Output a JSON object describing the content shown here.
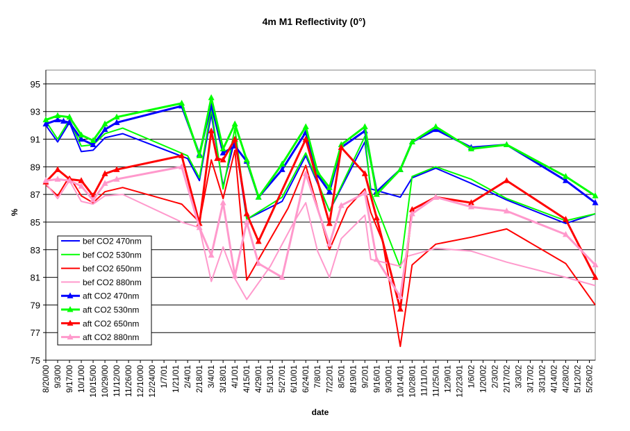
{
  "chart_data": {
    "type": "line",
    "title": "4m M1 Reflectivity  (0°)",
    "xlabel": "date",
    "ylabel": "%",
    "ylim": [
      75,
      96
    ],
    "y_ticks": [
      75,
      77,
      79,
      81,
      83,
      85,
      87,
      89,
      91,
      93,
      95
    ],
    "x_range": [
      "2000-08-20",
      "2002-06-02"
    ],
    "x_tick_labels": [
      "8/20/00",
      "9/3/00",
      "9/17/00",
      "10/1/00",
      "10/15/00",
      "10/29/00",
      "11/12/00",
      "11/26/00",
      "12/10/00",
      "12/24/00",
      "1/7/01",
      "1/21/01",
      "2/4/01",
      "2/18/01",
      "3/4/01",
      "3/18/01",
      "4/1/01",
      "4/15/01",
      "4/29/01",
      "5/13/01",
      "5/27/01",
      "6/10/01",
      "6/24/01",
      "7/8/01",
      "7/22/01",
      "8/5/01",
      "8/19/01",
      "9/2/01",
      "9/16/01",
      "9/30/01",
      "10/14/01",
      "10/28/01",
      "11/11/01",
      "11/25/01",
      "12/9/01",
      "12/23/01",
      "1/6/02",
      "1/20/02",
      "2/3/02",
      "2/17/02",
      "3/3/02",
      "3/17/02",
      "3/31/02",
      "4/14/02",
      "4/28/02",
      "5/12/02",
      "5/26/02"
    ],
    "x_tick_dates": [
      "2000-08-20",
      "2000-09-03",
      "2000-09-17",
      "2000-10-01",
      "2000-10-15",
      "2000-10-29",
      "2000-11-12",
      "2000-11-26",
      "2000-12-10",
      "2000-12-24",
      "2001-01-07",
      "2001-01-21",
      "2001-02-04",
      "2001-02-18",
      "2001-03-04",
      "2001-03-18",
      "2001-04-01",
      "2001-04-15",
      "2001-04-29",
      "2001-05-13",
      "2001-05-27",
      "2001-06-10",
      "2001-06-24",
      "2001-07-08",
      "2001-07-22",
      "2001-08-05",
      "2001-08-19",
      "2001-09-02",
      "2001-09-16",
      "2001-09-30",
      "2001-10-14",
      "2001-10-28",
      "2001-11-11",
      "2001-11-25",
      "2001-12-09",
      "2001-12-23",
      "2002-01-06",
      "2002-01-20",
      "2002-02-03",
      "2002-02-17",
      "2002-03-03",
      "2002-03-17",
      "2002-03-31",
      "2002-04-14",
      "2002-04-28",
      "2002-05-12",
      "2002-05-26"
    ],
    "grid": "horizontal",
    "legend_position": "left-bottom",
    "series": [
      {
        "name": "bef CO2 470nm",
        "color": "#0000ff",
        "marker": false,
        "width": 2,
        "points": [
          [
            "2000-08-20",
            92.0
          ],
          [
            "2000-09-03",
            90.8
          ],
          [
            "2000-09-17",
            92.2
          ],
          [
            "2000-10-01",
            90.1
          ],
          [
            "2000-10-15",
            90.2
          ],
          [
            "2000-10-29",
            91.1
          ],
          [
            "2000-11-19",
            91.4
          ],
          [
            "2001-02-04",
            89.6
          ],
          [
            "2001-02-18",
            88.0
          ],
          [
            "2001-03-04",
            92.8
          ],
          [
            "2001-03-18",
            87.6
          ],
          [
            "2001-04-01",
            91.0
          ],
          [
            "2001-04-15",
            85.2
          ],
          [
            "2001-05-27",
            86.5
          ],
          [
            "2001-06-24",
            89.8
          ],
          [
            "2001-07-22",
            85.8
          ],
          [
            "2001-09-02",
            90.8
          ],
          [
            "2001-09-09",
            87.4
          ],
          [
            "2001-10-14",
            86.8
          ],
          [
            "2001-10-28",
            88.2
          ],
          [
            "2001-11-25",
            88.9
          ],
          [
            "2002-01-06",
            87.8
          ],
          [
            "2002-02-17",
            86.6
          ],
          [
            "2002-04-28",
            84.9
          ],
          [
            "2002-06-02",
            85.6
          ]
        ]
      },
      {
        "name": "bef CO2 530nm",
        "color": "#00ff00",
        "marker": false,
        "width": 2,
        "points": [
          [
            "2000-08-20",
            92.3
          ],
          [
            "2000-09-03",
            91.0
          ],
          [
            "2000-09-17",
            92.4
          ],
          [
            "2000-10-01",
            90.5
          ],
          [
            "2000-10-15",
            90.6
          ],
          [
            "2000-10-29",
            91.4
          ],
          [
            "2000-11-19",
            91.8
          ],
          [
            "2001-02-04",
            89.8
          ],
          [
            "2001-02-18",
            88.2
          ],
          [
            "2001-03-04",
            93.2
          ],
          [
            "2001-03-18",
            87.4
          ],
          [
            "2001-04-01",
            91.8
          ],
          [
            "2001-04-15",
            85.2
          ],
          [
            "2001-05-27",
            86.8
          ],
          [
            "2001-06-24",
            90.0
          ],
          [
            "2001-07-22",
            85.8
          ],
          [
            "2001-09-02",
            91.2
          ],
          [
            "2001-09-09",
            87.2
          ],
          [
            "2001-10-14",
            81.7
          ],
          [
            "2001-10-28",
            88.3
          ],
          [
            "2001-11-25",
            89.0
          ],
          [
            "2002-01-06",
            88.1
          ],
          [
            "2002-02-17",
            86.7
          ],
          [
            "2002-04-28",
            85.1
          ],
          [
            "2002-06-02",
            85.6
          ]
        ]
      },
      {
        "name": "bef CO2 650nm",
        "color": "#ff0000",
        "marker": false,
        "width": 2,
        "points": [
          [
            "2000-08-20",
            87.7
          ],
          [
            "2000-09-03",
            86.9
          ],
          [
            "2000-09-17",
            88.3
          ],
          [
            "2000-10-01",
            86.9
          ],
          [
            "2000-10-15",
            86.4
          ],
          [
            "2000-10-29",
            87.2
          ],
          [
            "2000-11-19",
            87.5
          ],
          [
            "2001-01-28",
            86.3
          ],
          [
            "2001-02-18",
            85.0
          ],
          [
            "2001-03-04",
            89.5
          ],
          [
            "2001-03-18",
            86.7
          ],
          [
            "2001-04-01",
            90.2
          ],
          [
            "2001-04-15",
            80.8
          ],
          [
            "2001-06-03",
            86.0
          ],
          [
            "2001-06-24",
            89.1
          ],
          [
            "2001-07-22",
            83.0
          ],
          [
            "2001-08-12",
            86.0
          ],
          [
            "2001-09-02",
            87.4
          ],
          [
            "2001-09-09",
            85.7
          ],
          [
            "2001-09-23",
            83.6
          ],
          [
            "2001-10-14",
            76.0
          ],
          [
            "2001-10-28",
            81.9
          ],
          [
            "2001-11-25",
            83.4
          ],
          [
            "2002-01-06",
            83.9
          ],
          [
            "2002-02-17",
            84.5
          ],
          [
            "2002-04-28",
            82.0
          ],
          [
            "2002-06-02",
            79.0
          ]
        ]
      },
      {
        "name": "bef CO2 880nm",
        "color": "#ff99cc",
        "marker": false,
        "width": 2,
        "points": [
          [
            "2000-08-20",
            87.8
          ],
          [
            "2000-09-03",
            86.7
          ],
          [
            "2000-09-17",
            88.0
          ],
          [
            "2000-10-01",
            86.5
          ],
          [
            "2000-10-15",
            86.3
          ],
          [
            "2000-10-29",
            86.9
          ],
          [
            "2000-11-19",
            87.0
          ],
          [
            "2001-01-28",
            85.0
          ],
          [
            "2001-02-18",
            84.6
          ],
          [
            "2001-03-04",
            80.7
          ],
          [
            "2001-03-18",
            83.2
          ],
          [
            "2001-04-01",
            80.9
          ],
          [
            "2001-04-15",
            79.4
          ],
          [
            "2001-05-13",
            81.8
          ],
          [
            "2001-06-10",
            85.0
          ],
          [
            "2001-06-24",
            86.4
          ],
          [
            "2001-07-08",
            82.9
          ],
          [
            "2001-07-22",
            81.0
          ],
          [
            "2001-08-05",
            83.8
          ],
          [
            "2001-09-02",
            85.5
          ],
          [
            "2001-09-09",
            82.3
          ],
          [
            "2001-10-14",
            81.8
          ],
          [
            "2001-10-21",
            82.5
          ],
          [
            "2001-11-25",
            83.1
          ],
          [
            "2002-01-06",
            82.9
          ],
          [
            "2002-02-17",
            82.1
          ],
          [
            "2002-04-28",
            81.0
          ],
          [
            "2002-06-02",
            80.4
          ]
        ]
      },
      {
        "name": "aft CO2 470nm",
        "color": "#0000ff",
        "marker": true,
        "width": 3,
        "points": [
          [
            "2000-08-20",
            92.1
          ],
          [
            "2000-09-03",
            92.4
          ],
          [
            "2000-09-10",
            92.3
          ],
          [
            "2000-09-17",
            92.2
          ],
          [
            "2000-10-01",
            91.0
          ],
          [
            "2000-10-15",
            90.6
          ],
          [
            "2000-10-29",
            91.7
          ],
          [
            "2000-11-12",
            92.2
          ],
          [
            "2001-01-28",
            93.4
          ],
          [
            "2001-02-18",
            89.9
          ],
          [
            "2001-03-04",
            93.5
          ],
          [
            "2001-03-18",
            90.0
          ],
          [
            "2001-04-01",
            90.5
          ],
          [
            "2001-04-15",
            89.4
          ],
          [
            "2001-04-29",
            86.8
          ],
          [
            "2001-05-27",
            88.8
          ],
          [
            "2001-06-24",
            91.5
          ],
          [
            "2001-07-08",
            88.4
          ],
          [
            "2001-07-22",
            87.2
          ],
          [
            "2001-08-05",
            90.4
          ],
          [
            "2001-09-02",
            91.6
          ],
          [
            "2001-09-16",
            87.2
          ],
          [
            "2001-10-14",
            88.8
          ],
          [
            "2001-10-28",
            90.8
          ],
          [
            "2001-11-25",
            91.7
          ],
          [
            "2002-01-06",
            90.4
          ],
          [
            "2002-02-17",
            90.6
          ],
          [
            "2002-04-28",
            88.0
          ],
          [
            "2002-06-02",
            86.4
          ]
        ]
      },
      {
        "name": "aft CO2 530nm",
        "color": "#00ff00",
        "marker": true,
        "width": 3,
        "points": [
          [
            "2000-08-20",
            92.4
          ],
          [
            "2000-09-03",
            92.7
          ],
          [
            "2000-09-17",
            92.6
          ],
          [
            "2000-10-01",
            91.3
          ],
          [
            "2000-10-15",
            90.9
          ],
          [
            "2000-10-29",
            92.1
          ],
          [
            "2000-11-12",
            92.6
          ],
          [
            "2001-01-28",
            93.6
          ],
          [
            "2001-02-18",
            89.8
          ],
          [
            "2001-03-04",
            94.0
          ],
          [
            "2001-03-18",
            90.3
          ],
          [
            "2001-04-01",
            92.1
          ],
          [
            "2001-04-15",
            89.5
          ],
          [
            "2001-04-29",
            86.8
          ],
          [
            "2001-05-27",
            89.2
          ],
          [
            "2001-06-24",
            91.9
          ],
          [
            "2001-07-08",
            88.6
          ],
          [
            "2001-07-22",
            87.5
          ],
          [
            "2001-08-05",
            90.6
          ],
          [
            "2001-09-02",
            91.9
          ],
          [
            "2001-09-16",
            87.0
          ],
          [
            "2001-10-14",
            88.8
          ],
          [
            "2001-10-28",
            90.8
          ],
          [
            "2001-11-25",
            91.9
          ],
          [
            "2002-01-06",
            90.3
          ],
          [
            "2002-02-17",
            90.6
          ],
          [
            "2002-04-28",
            88.3
          ],
          [
            "2002-06-02",
            86.9
          ]
        ]
      },
      {
        "name": "aft CO2 650nm",
        "color": "#ff0000",
        "marker": true,
        "width": 3,
        "points": [
          [
            "2000-08-20",
            87.9
          ],
          [
            "2000-09-03",
            88.8
          ],
          [
            "2000-09-17",
            88.1
          ],
          [
            "2000-10-01",
            88.0
          ],
          [
            "2000-10-15",
            86.9
          ],
          [
            "2000-10-29",
            88.5
          ],
          [
            "2000-11-12",
            88.8
          ],
          [
            "2001-01-28",
            89.8
          ],
          [
            "2001-02-18",
            84.9
          ],
          [
            "2001-03-04",
            91.6
          ],
          [
            "2001-03-11",
            89.6
          ],
          [
            "2001-03-18",
            89.5
          ],
          [
            "2001-04-01",
            91.0
          ],
          [
            "2001-04-15",
            85.6
          ],
          [
            "2001-04-29",
            83.6
          ],
          [
            "2001-06-24",
            91.0
          ],
          [
            "2001-07-22",
            84.9
          ],
          [
            "2001-08-05",
            90.4
          ],
          [
            "2001-09-02",
            88.5
          ],
          [
            "2001-09-16",
            85.3
          ],
          [
            "2001-10-14",
            78.7
          ],
          [
            "2001-10-28",
            85.9
          ],
          [
            "2001-11-25",
            86.8
          ],
          [
            "2002-01-06",
            86.4
          ],
          [
            "2002-02-17",
            88.0
          ],
          [
            "2002-04-28",
            85.2
          ],
          [
            "2002-06-02",
            81.0
          ]
        ]
      },
      {
        "name": "aft CO2 880nm",
        "color": "#ff99cc",
        "marker": true,
        "width": 3,
        "points": [
          [
            "2000-08-20",
            88.0
          ],
          [
            "2000-09-03",
            88.1
          ],
          [
            "2000-09-17",
            88.0
          ],
          [
            "2000-10-01",
            87.6
          ],
          [
            "2000-10-15",
            86.6
          ],
          [
            "2000-10-29",
            87.8
          ],
          [
            "2000-11-12",
            88.1
          ],
          [
            "2001-01-28",
            89.0
          ],
          [
            "2001-02-18",
            84.6
          ],
          [
            "2001-03-04",
            82.6
          ],
          [
            "2001-03-18",
            86.4
          ],
          [
            "2001-04-01",
            81.1
          ],
          [
            "2001-04-15",
            85.0
          ],
          [
            "2001-04-29",
            82.0
          ],
          [
            "2001-05-27",
            81.0
          ],
          [
            "2001-06-24",
            88.5
          ],
          [
            "2001-07-22",
            83.4
          ],
          [
            "2001-08-05",
            86.2
          ],
          [
            "2001-09-02",
            87.1
          ],
          [
            "2001-09-16",
            82.3
          ],
          [
            "2001-10-14",
            79.6
          ],
          [
            "2001-10-28",
            85.6
          ],
          [
            "2001-11-25",
            86.8
          ],
          [
            "2002-01-06",
            86.1
          ],
          [
            "2002-02-17",
            85.8
          ],
          [
            "2002-04-28",
            84.1
          ],
          [
            "2002-06-02",
            81.9
          ]
        ]
      }
    ]
  }
}
